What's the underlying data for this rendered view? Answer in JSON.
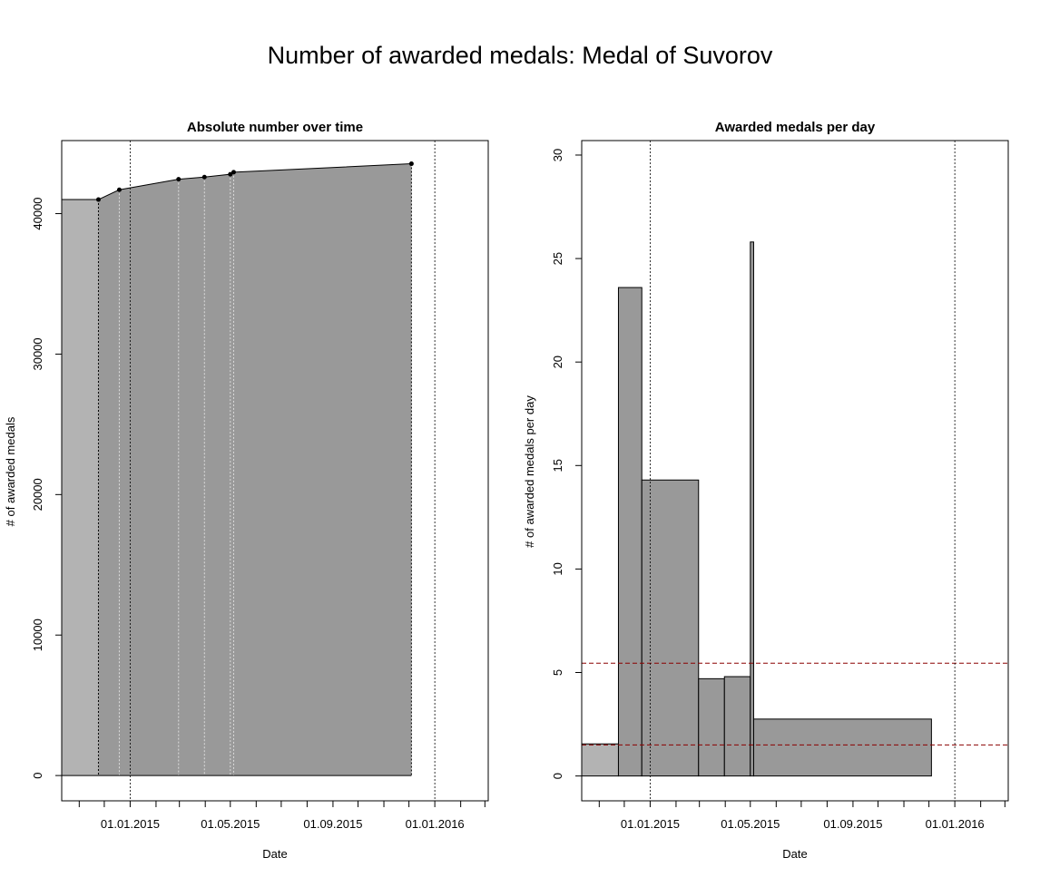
{
  "figure": {
    "title": "Number of awarded medals: Medal of Suvorov"
  },
  "chart_data": [
    {
      "type": "area",
      "title": "Absolute number over time",
      "xlabel": "Date",
      "ylabel": "# of awarded medals",
      "x_range": [
        "2014-10-11",
        "2016-03-05"
      ],
      "ylim": [
        -1800,
        45200
      ],
      "yticks": [
        0,
        10000,
        20000,
        30000,
        40000
      ],
      "xtick_labels": [
        "01.01.2015",
        "01.05.2015",
        "01.09.2015",
        "01.01.2016"
      ],
      "reference_dates": [
        "2015-01-01",
        "2016-01-01"
      ],
      "points": [
        {
          "date": "2014-11-24",
          "value": 41000
        },
        {
          "date": "2014-12-19",
          "value": 41700
        },
        {
          "date": "2015-02-28",
          "value": 42450
        },
        {
          "date": "2015-03-31",
          "value": 42600
        },
        {
          "date": "2015-05-01",
          "value": 42800
        },
        {
          "date": "2015-05-05",
          "value": 42950
        },
        {
          "date": "2015-12-04",
          "value": 43550
        }
      ],
      "baseline": {
        "from": "2014-10-11",
        "to": "2014-11-24",
        "value": 41000
      },
      "grid": false,
      "colors": {
        "fill_before": "#b3b3b3",
        "fill_main": "#999999",
        "line": "#000000"
      }
    },
    {
      "type": "bar",
      "title": "Awarded medals per day",
      "xlabel": "Date",
      "ylabel": "# of awarded medals per day",
      "x_range": [
        "2014-10-11",
        "2016-03-05"
      ],
      "ylim": [
        -1.2,
        30.7
      ],
      "yticks": [
        0,
        5,
        10,
        15,
        20,
        25,
        30
      ],
      "xtick_labels": [
        "01.01.2015",
        "01.05.2015",
        "01.09.2015",
        "01.01.2016"
      ],
      "reference_dates": [
        "2015-01-01",
        "2016-01-01"
      ],
      "bars": [
        {
          "start": "2014-10-11",
          "end": "2014-11-24",
          "value": 1.55
        },
        {
          "start": "2014-11-24",
          "end": "2014-12-22",
          "value": 23.6
        },
        {
          "start": "2014-12-22",
          "end": "2015-02-28",
          "value": 14.3
        },
        {
          "start": "2015-02-28",
          "end": "2015-03-31",
          "value": 4.7
        },
        {
          "start": "2015-03-31",
          "end": "2015-05-01",
          "value": 4.8
        },
        {
          "start": "2015-05-01",
          "end": "2015-05-05",
          "value": 25.8
        },
        {
          "start": "2015-05-05",
          "end": "2015-12-04",
          "value": 2.75
        }
      ],
      "hlines": [
        {
          "value": 5.45,
          "color": "#8b0000",
          "style": "dashed"
        },
        {
          "value": 1.5,
          "color": "#8b0000",
          "style": "dashed"
        }
      ],
      "grid": false,
      "colors": {
        "fill_before": "#b3b3b3",
        "fill_main": "#999999",
        "line": "#000000"
      }
    }
  ]
}
